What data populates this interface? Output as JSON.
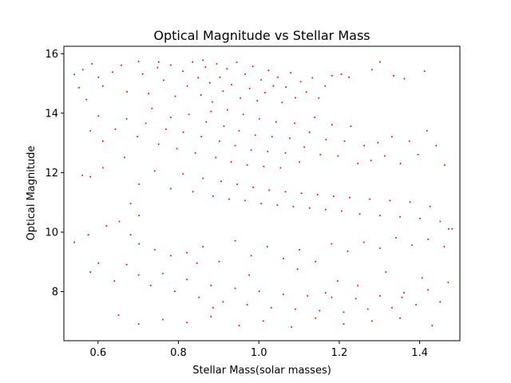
{
  "chart_data": {
    "type": "scatter",
    "title": "Optical Magnitude vs Stellar Mass",
    "xlabel": "Stellar Mass(solar masses)",
    "ylabel": "Optical Magnitude",
    "xlim": [
      0.515,
      1.5
    ],
    "ylim": [
      6.35,
      16.25
    ],
    "xticks": [
      0.6,
      0.8,
      1.0,
      1.2,
      1.4
    ],
    "xtick_labels": [
      "0.6",
      "0.8",
      "1.0",
      "1.2",
      "1.4"
    ],
    "yticks": [
      8,
      10,
      12,
      14,
      16
    ],
    "ytick_labels": [
      "8",
      "10",
      "12",
      "14",
      "16"
    ],
    "grid": false,
    "marker_color": "#ff0000",
    "series": [
      {
        "points": [
          [
            0.541,
            15.3
          ],
          [
            0.553,
            14.86
          ],
          [
            0.562,
            15.46
          ],
          [
            0.571,
            14.46
          ],
          [
            0.585,
            15.66
          ],
          [
            0.601,
            15.21
          ],
          [
            0.612,
            14.91
          ],
          [
            0.636,
            15.38
          ],
          [
            0.658,
            15.61
          ],
          [
            0.672,
            14.72
          ],
          [
            0.701,
            15.74
          ],
          [
            0.711,
            15.32
          ],
          [
            0.726,
            14.66
          ],
          [
            0.748,
            15.53
          ],
          [
            0.763,
            15.11
          ],
          [
            0.781,
            15.62
          ],
          [
            0.792,
            14.57
          ],
          [
            0.811,
            15.41
          ],
          [
            0.822,
            14.91
          ],
          [
            0.835,
            15.72
          ],
          [
            0.849,
            15.19
          ],
          [
            0.856,
            14.61
          ],
          [
            0.867,
            15.55
          ],
          [
            0.878,
            15.02
          ],
          [
            0.884,
            14.38
          ],
          [
            0.895,
            15.66
          ],
          [
            0.903,
            15.21
          ],
          [
            0.911,
            14.74
          ],
          [
            0.921,
            15.49
          ],
          [
            0.932,
            14.96
          ],
          [
            0.945,
            15.71
          ],
          [
            0.954,
            14.51
          ],
          [
            0.966,
            15.31
          ],
          [
            0.977,
            14.83
          ],
          [
            0.985,
            15.57
          ],
          [
            0.996,
            14.42
          ],
          [
            1.006,
            15.12
          ],
          [
            1.015,
            14.69
          ],
          [
            1.024,
            15.44
          ],
          [
            1.036,
            14.92
          ],
          [
            1.047,
            15.21
          ],
          [
            1.058,
            14.36
          ],
          [
            1.067,
            14.88
          ],
          [
            1.079,
            15.36
          ],
          [
            1.091,
            14.52
          ],
          [
            1.104,
            15.06
          ],
          [
            1.118,
            14.71
          ],
          [
            1.133,
            15.19
          ],
          [
            1.149,
            14.51
          ],
          [
            1.165,
            14.91
          ],
          [
            1.182,
            15.26
          ],
          [
            1.205,
            15.31
          ],
          [
            1.224,
            15.21
          ],
          [
            1.281,
            15.46
          ],
          [
            1.301,
            15.72
          ],
          [
            1.335,
            15.26
          ],
          [
            1.362,
            15.16
          ],
          [
            1.412,
            15.41
          ],
          [
            0.751,
            15.72
          ],
          [
            0.861,
            15.78
          ],
          [
            0.581,
            13.41
          ],
          [
            0.601,
            13.91
          ],
          [
            0.612,
            13.06
          ],
          [
            0.643,
            13.46
          ],
          [
            0.671,
            13.81
          ],
          [
            0.698,
            13.21
          ],
          [
            0.719,
            13.66
          ],
          [
            0.734,
            14.16
          ],
          [
            0.751,
            12.96
          ],
          [
            0.769,
            13.46
          ],
          [
            0.781,
            13.86
          ],
          [
            0.796,
            12.81
          ],
          [
            0.812,
            13.36
          ],
          [
            0.826,
            13.96
          ],
          [
            0.842,
            12.66
          ],
          [
            0.857,
            13.21
          ],
          [
            0.869,
            13.71
          ],
          [
            0.881,
            14.06
          ],
          [
            0.893,
            12.51
          ],
          [
            0.902,
            13.06
          ],
          [
            0.913,
            13.56
          ],
          [
            0.922,
            14.11
          ],
          [
            0.931,
            12.36
          ],
          [
            0.941,
            12.91
          ],
          [
            0.951,
            13.41
          ],
          [
            0.961,
            13.96
          ],
          [
            0.971,
            12.26
          ],
          [
            0.981,
            12.76
          ],
          [
            0.991,
            13.26
          ],
          [
            1.001,
            13.81
          ],
          [
            1.012,
            12.21
          ],
          [
            1.022,
            12.71
          ],
          [
            1.033,
            13.21
          ],
          [
            1.043,
            13.71
          ],
          [
            1.054,
            12.16
          ],
          [
            1.066,
            12.66
          ],
          [
            1.077,
            13.16
          ],
          [
            1.089,
            13.66
          ],
          [
            1.101,
            12.36
          ],
          [
            1.113,
            12.86
          ],
          [
            1.126,
            13.36
          ],
          [
            1.139,
            13.86
          ],
          [
            1.153,
            12.61
          ],
          [
            1.167,
            13.11
          ],
          [
            1.182,
            13.61
          ],
          [
            1.197,
            12.56
          ],
          [
            1.213,
            13.06
          ],
          [
            1.229,
            13.56
          ],
          [
            1.246,
            12.31
          ],
          [
            1.262,
            12.91
          ],
          [
            1.279,
            12.41
          ],
          [
            1.296,
            13.01
          ],
          [
            1.313,
            12.56
          ],
          [
            1.331,
            13.21
          ],
          [
            1.352,
            12.31
          ],
          [
            1.374,
            13.06
          ],
          [
            1.396,
            12.61
          ],
          [
            1.418,
            13.41
          ],
          [
            1.441,
            12.91
          ],
          [
            1.462,
            12.26
          ],
          [
            0.561,
            11.91
          ],
          [
            0.581,
            11.86
          ],
          [
            0.612,
            12.16
          ],
          [
            0.666,
            12.51
          ],
          [
            0.702,
            11.61
          ],
          [
            0.741,
            12.06
          ],
          [
            0.781,
            11.46
          ],
          [
            0.811,
            11.96
          ],
          [
            0.836,
            11.36
          ],
          [
            0.861,
            11.81
          ],
          [
            0.886,
            11.21
          ],
          [
            0.906,
            11.71
          ],
          [
            0.926,
            11.11
          ],
          [
            0.946,
            11.61
          ],
          [
            0.966,
            11.06
          ],
          [
            0.986,
            11.51
          ],
          [
            1.006,
            10.96
          ],
          [
            1.026,
            11.41
          ],
          [
            1.046,
            10.91
          ],
          [
            1.066,
            11.36
          ],
          [
            1.086,
            10.86
          ],
          [
            1.106,
            11.31
          ],
          [
            1.126,
            10.81
          ],
          [
            1.146,
            11.26
          ],
          [
            1.166,
            10.76
          ],
          [
            1.186,
            11.21
          ],
          [
            1.206,
            10.71
          ],
          [
            1.226,
            11.16
          ],
          [
            1.251,
            10.61
          ],
          [
            1.276,
            11.11
          ],
          [
            1.301,
            10.56
          ],
          [
            1.326,
            11.06
          ],
          [
            1.351,
            10.51
          ],
          [
            1.376,
            11.01
          ],
          [
            1.401,
            10.46
          ],
          [
            1.426,
            10.86
          ],
          [
            1.451,
            10.36
          ],
          [
            1.472,
            10.11
          ],
          [
            0.681,
            10.96
          ],
          [
            0.702,
            10.56
          ],
          [
            0.541,
            9.66
          ],
          [
            0.576,
            9.91
          ],
          [
            0.621,
            10.21
          ],
          [
            0.653,
            10.36
          ],
          [
            0.681,
            9.91
          ],
          [
            0.702,
            9.61
          ],
          [
            0.741,
            9.41
          ],
          [
            0.781,
            9.21
          ],
          [
            0.821,
            9.31
          ],
          [
            0.861,
            9.51
          ],
          [
            0.901,
            9.01
          ],
          [
            0.941,
            9.71
          ],
          [
            0.981,
            9.21
          ],
          [
            1.021,
            9.51
          ],
          [
            1.061,
            9.11
          ],
          [
            1.101,
            9.41
          ],
          [
            1.141,
            9.01
          ],
          [
            1.181,
            9.61
          ],
          [
            1.221,
            9.36
          ],
          [
            1.261,
            9.66
          ],
          [
            1.301,
            9.46
          ],
          [
            1.341,
            9.81
          ],
          [
            1.381,
            9.56
          ],
          [
            1.421,
            9.76
          ],
          [
            1.461,
            9.51
          ],
          [
            1.481,
            10.11
          ],
          [
            0.581,
            8.66
          ],
          [
            0.601,
            8.96
          ],
          [
            0.641,
            8.36
          ],
          [
            0.671,
            8.91
          ],
          [
            0.701,
            8.56
          ],
          [
            0.731,
            8.21
          ],
          [
            0.761,
            8.61
          ],
          [
            0.791,
            8.01
          ],
          [
            0.821,
            8.41
          ],
          [
            0.851,
            7.81
          ],
          [
            0.881,
            8.21
          ],
          [
            0.911,
            7.66
          ],
          [
            0.941,
            8.11
          ],
          [
            0.971,
            7.56
          ],
          [
            1.001,
            8.01
          ],
          [
            1.031,
            7.46
          ],
          [
            1.061,
            7.91
          ],
          [
            1.091,
            7.41
          ],
          [
            1.121,
            7.86
          ],
          [
            1.151,
            7.36
          ],
          [
            1.181,
            7.81
          ],
          [
            1.211,
            7.31
          ],
          [
            1.241,
            7.76
          ],
          [
            1.271,
            7.41
          ],
          [
            1.301,
            7.86
          ],
          [
            1.331,
            7.46
          ],
          [
            1.361,
            7.96
          ],
          [
            1.391,
            7.56
          ],
          [
            1.421,
            8.06
          ],
          [
            1.451,
            7.66
          ],
          [
            1.471,
            8.31
          ],
          [
            0.651,
            7.21
          ],
          [
            0.701,
            6.91
          ],
          [
            0.761,
            7.06
          ],
          [
            0.821,
            6.96
          ],
          [
            0.881,
            7.16
          ],
          [
            0.951,
            6.86
          ],
          [
            1.011,
            7.01
          ],
          [
            1.081,
            6.81
          ],
          [
            1.141,
            7.11
          ],
          [
            1.211,
            6.91
          ],
          [
            1.281,
            7.01
          ],
          [
            1.351,
            7.11
          ],
          [
            1.431,
            6.86
          ],
          [
            0.846,
            8.96
          ],
          [
            0.976,
            8.56
          ],
          [
            1.096,
            8.76
          ],
          [
            1.196,
            8.36
          ],
          [
            1.316,
            8.66
          ],
          [
            1.406,
            8.46
          ],
          [
            0.886,
            7.46
          ],
          [
            1.166,
            7.96
          ],
          [
            1.246,
            8.21
          ],
          [
            1.356,
            7.81
          ]
        ]
      }
    ]
  }
}
